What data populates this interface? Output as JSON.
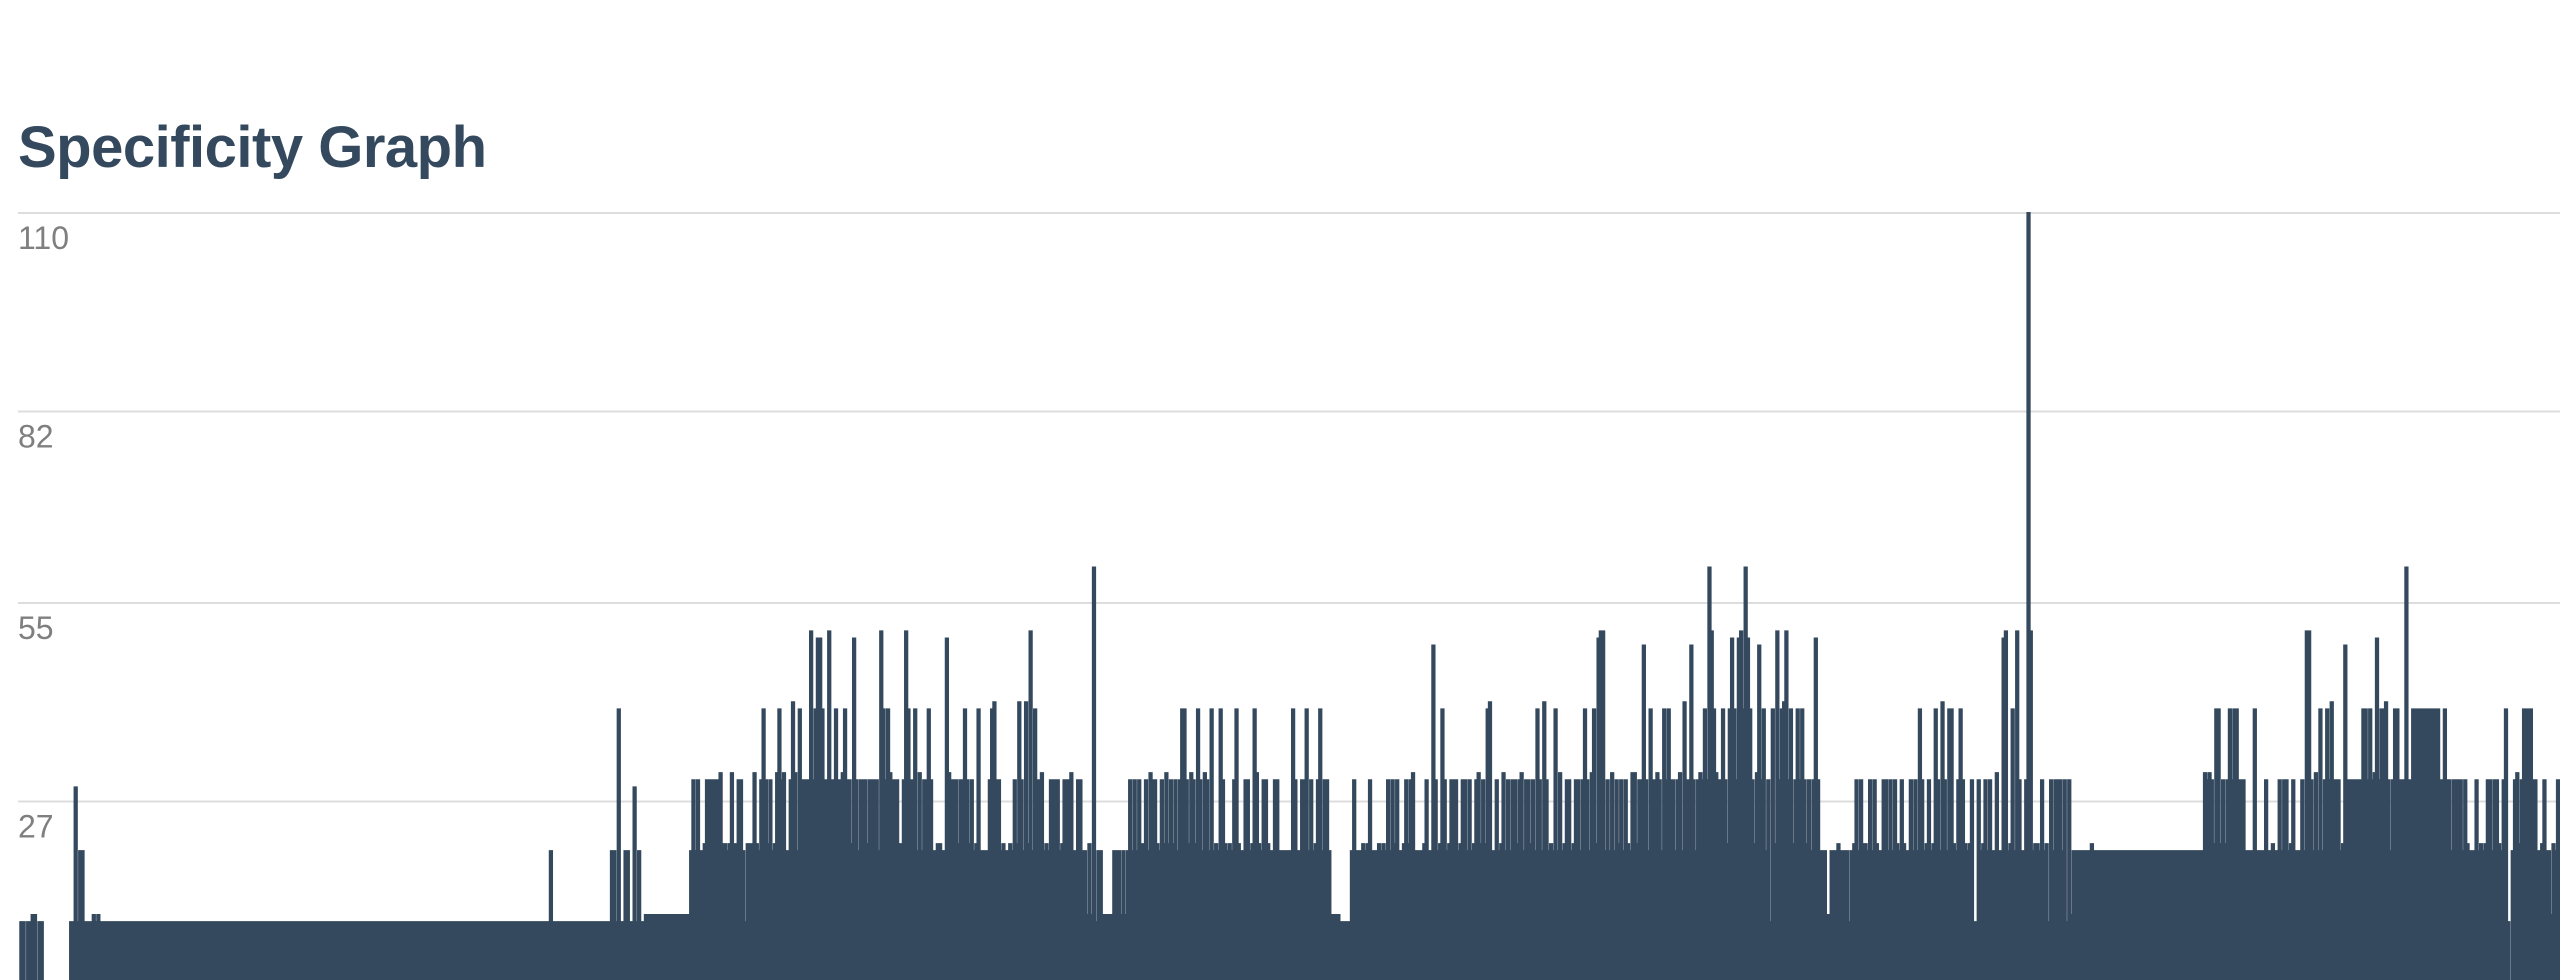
{
  "page_title": "Specificity Graph",
  "colors": {
    "series": "#34495e",
    "grid": "#dddddd",
    "tick": "#7f7f7f",
    "title": "#34495e"
  },
  "chart_data": {
    "type": "area",
    "title": "Specificity Graph",
    "xlabel": "",
    "ylabel": "",
    "ylim": [
      0,
      110
    ],
    "yticks": [
      110,
      82,
      55,
      27
    ],
    "grid": true,
    "legend": "none",
    "x": "selector index 0..n-1 (no x-axis labels shown)",
    "series": [
      {
        "values": [
          0,
          10,
          10,
          0,
          10,
          10,
          11,
          11,
          0,
          10,
          10,
          0,
          0,
          0,
          0,
          0,
          0,
          0,
          0,
          0,
          0,
          0,
          0,
          10,
          10,
          29,
          10,
          20,
          20,
          10,
          10,
          10,
          10,
          11,
          10,
          11,
          10,
          10,
          10,
          10,
          10,
          10,
          10,
          10,
          10,
          10,
          10,
          10,
          10,
          10,
          10,
          10,
          10,
          10,
          10,
          10,
          10,
          10,
          10,
          10,
          10,
          10,
          10,
          10,
          10,
          10,
          10,
          10,
          10,
          10,
          10,
          10,
          10,
          10,
          10,
          10,
          10,
          10,
          10,
          10,
          10,
          10,
          10,
          10,
          10,
          10,
          10,
          10,
          10,
          10,
          10,
          10,
          10,
          10,
          10,
          10,
          10,
          10,
          10,
          10,
          10,
          10,
          10,
          10,
          10,
          10,
          10,
          10,
          10,
          10,
          10,
          10,
          10,
          10,
          10,
          10,
          10,
          10,
          10,
          10,
          10,
          10,
          10,
          10,
          10,
          10,
          10,
          10,
          10,
          10,
          10,
          10,
          10,
          10,
          10,
          10,
          10,
          10,
          10,
          10,
          10,
          10,
          10,
          10,
          10,
          10,
          10,
          10,
          10,
          10,
          10,
          10,
          10,
          10,
          10,
          10,
          10,
          10,
          10,
          10,
          10,
          10,
          10,
          10,
          10,
          10,
          10,
          10,
          10,
          10,
          10,
          10,
          10,
          10,
          10,
          10,
          10,
          10,
          10,
          10,
          10,
          10,
          10,
          10,
          10,
          10,
          10,
          10,
          10,
          10,
          10,
          10,
          10,
          10,
          10,
          10,
          10,
          10,
          10,
          10,
          10,
          10,
          10,
          10,
          10,
          10,
          10,
          10,
          10,
          10,
          10,
          10,
          10,
          10,
          10,
          10,
          10,
          10,
          10,
          10,
          10,
          10,
          10,
          10,
          10,
          10,
          10,
          10,
          10,
          10,
          10,
          10,
          10,
          10,
          10,
          20,
          10,
          10,
          10,
          10,
          10,
          10,
          10,
          10,
          10,
          10,
          10,
          10,
          10,
          10,
          10,
          10,
          10,
          10,
          10,
          10,
          10,
          10,
          10,
          10,
          10,
          10,
          20,
          20,
          10,
          40,
          10,
          10,
          20,
          20,
          10,
          10,
          29,
          10,
          20,
          10,
          10,
          11,
          11,
          11,
          11,
          11,
          11,
          11,
          11,
          11,
          11,
          11,
          11,
          11,
          11,
          11,
          11,
          11,
          11,
          11,
          11,
          20,
          30,
          20,
          30,
          20,
          20,
          21,
          30,
          30,
          30,
          30,
          30,
          30,
          31,
          21,
          21,
          20,
          21,
          31,
          21,
          21,
          30,
          30,
          20,
          10,
          21,
          21,
          21,
          31,
          21,
          20,
          30,
          40,
          30,
          21,
          30,
          20,
          21,
          31,
          40,
          30,
          31,
          20,
          20,
          30,
          41,
          31,
          20,
          40,
          30,
          30,
          30,
          30,
          51,
          30,
          40,
          50,
          50,
          40,
          30,
          30,
          51,
          30,
          30,
          40,
          30,
          30,
          31,
          40,
          30,
          30,
          21,
          50,
          30,
          20,
          30,
          30,
          30,
          21,
          30,
          30,
          30,
          30,
          20,
          51,
          40,
          30,
          40,
          31,
          30,
          30,
          30,
          21,
          21,
          30,
          51,
          40,
          30,
          30,
          40,
          20,
          31,
          20,
          30,
          30,
          40,
          30,
          20,
          20,
          21,
          21,
          20,
          20,
          50,
          31,
          30,
          30,
          30,
          21,
          30,
          30,
          40,
          30,
          21,
          30,
          20,
          21,
          40,
          20,
          20,
          20,
          20,
          30,
          40,
          41,
          30,
          30,
          20,
          21,
          20,
          20,
          21,
          20,
          30,
          21,
          41,
          30,
          20,
          41,
          21,
          51,
          20,
          40,
          30,
          30,
          31,
          20,
          21,
          20,
          30,
          30,
          30,
          30,
          20,
          21,
          30,
          30,
          30,
          31,
          20,
          20,
          30,
          30,
          20,
          20,
          11,
          21,
          11,
          60,
          10,
          20,
          20,
          11,
          11,
          11,
          11,
          11,
          20,
          20,
          20,
          11,
          20,
          11,
          20,
          30,
          20,
          30,
          20,
          30,
          21,
          21,
          30,
          20,
          31,
          30,
          30,
          21,
          20,
          30,
          21,
          31,
          21,
          30,
          21,
          30,
          20,
          30,
          40,
          40,
          30,
          21,
          31,
          30,
          21,
          40,
          30,
          20,
          31,
          30,
          20,
          40,
          20,
          21,
          20,
          40,
          30,
          21,
          20,
          21,
          20,
          30,
          40,
          21,
          20,
          20,
          30,
          30,
          20,
          21,
          40,
          31,
          21,
          20,
          30,
          30,
          21,
          20,
          20,
          30,
          30,
          20,
          20,
          20,
          20,
          20,
          20,
          40,
          30,
          20,
          20,
          30,
          30,
          40,
          20,
          30,
          20,
          21,
          30,
          40,
          20,
          30,
          30,
          20,
          11,
          11,
          11,
          11,
          10,
          10,
          10,
          10,
          10,
          20,
          30,
          20,
          20,
          20,
          21,
          20,
          21,
          30,
          20,
          20,
          20,
          21,
          20,
          21,
          20,
          30,
          20,
          30,
          21,
          30,
          20,
          20,
          21,
          30,
          21,
          30,
          31,
          20,
          20,
          20,
          20,
          21,
          30,
          20,
          20,
          49,
          30,
          20,
          21,
          40,
          30,
          20,
          21,
          30,
          30,
          30,
          20,
          21,
          30,
          30,
          20,
          30,
          20,
          21,
          30,
          31,
          21,
          30,
          21,
          40,
          41,
          20,
          20,
          30,
          20,
          21,
          31,
          20,
          30,
          20,
          30,
          30,
          21,
          30,
          31,
          20,
          30,
          30,
          21,
          30,
          20,
          40,
          30,
          20,
          41,
          30,
          20,
          21,
          20,
          40,
          20,
          31,
          20,
          21,
          30,
          30,
          20,
          21,
          30,
          30,
          20,
          30,
          40,
          30,
          20,
          31,
          40,
          21,
          50,
          51,
          51,
          20,
          30,
          20,
          31,
          20,
          30,
          21,
          30,
          20,
          30,
          21,
          20,
          31,
          31,
          21,
          30,
          30,
          49,
          30,
          20,
          40,
          30,
          30,
          31,
          30,
          20,
          40,
          30,
          40,
          30,
          30,
          20,
          30,
          31,
          20,
          41,
          30,
          30,
          49,
          30,
          20,
          30,
          31,
          30,
          40,
          30,
          60,
          51,
          40,
          31,
          30,
          30,
          40,
          30,
          21,
          40,
          50,
          40,
          30,
          50,
          51,
          40,
          60,
          50,
          40,
          30,
          21,
          31,
          49,
          30,
          40,
          20,
          30,
          10,
          40,
          21,
          51,
          30,
          40,
          41,
          51,
          30,
          40,
          21,
          30,
          40,
          30,
          40,
          30,
          21,
          30,
          20,
          30,
          50,
          30,
          20,
          20,
          20,
          11,
          11,
          20,
          20,
          20,
          21,
          20,
          20,
          20,
          20,
          10,
          20,
          21,
          30,
          20,
          30,
          21,
          21,
          20,
          30,
          20,
          30,
          21,
          20,
          20,
          30,
          30,
          20,
          30,
          20,
          30,
          21,
          20,
          30,
          21,
          20,
          20,
          30,
          20,
          30,
          20,
          40,
          30,
          20,
          21,
          30,
          20,
          21,
          40,
          30,
          20,
          41,
          30,
          20,
          40,
          40,
          21,
          20,
          30,
          40,
          30,
          21,
          20,
          21,
          30,
          10,
          10,
          30,
          20,
          21,
          30,
          20,
          30,
          20,
          20,
          31,
          20,
          20,
          50,
          51,
          20,
          21,
          40,
          20,
          51,
          30,
          20,
          20,
          30,
          110,
          51,
          20,
          21,
          21,
          20,
          30,
          20,
          21,
          10,
          30,
          20,
          30,
          30,
          30,
          20,
          30,
          10,
          30,
          11,
          20,
          20,
          20,
          20,
          20,
          20,
          20,
          20,
          21,
          20,
          20,
          20,
          20,
          20,
          20,
          20,
          20,
          20,
          20,
          20,
          20,
          20,
          20,
          20,
          20,
          20,
          20,
          20,
          20,
          20,
          20,
          20,
          20,
          20,
          20,
          20,
          20,
          20,
          20,
          20,
          20,
          20,
          20,
          20,
          20,
          20,
          20,
          20,
          20,
          20,
          20,
          20,
          20,
          20,
          20,
          20,
          20,
          20,
          31,
          30,
          31,
          30,
          21,
          40,
          40,
          21,
          30,
          21,
          30,
          40,
          30,
          40,
          40,
          30,
          30,
          30,
          20,
          20,
          20,
          20,
          40,
          20,
          20,
          20,
          20,
          30,
          20,
          20,
          21,
          20,
          20,
          30,
          20,
          30,
          30,
          20,
          21,
          30,
          20,
          20,
          20,
          30,
          20,
          51,
          51,
          30,
          20,
          31,
          20,
          40,
          20,
          30,
          40,
          30,
          41,
          30,
          30,
          30,
          20,
          21,
          49,
          30,
          30,
          30,
          30,
          30,
          30,
          30,
          40,
          40,
          30,
          40,
          30,
          31,
          50,
          30,
          40,
          40,
          41,
          30,
          20,
          30,
          40,
          40,
          30,
          30,
          30,
          60,
          30,
          30,
          40,
          40,
          40,
          40,
          40,
          40,
          40,
          40,
          40,
          40,
          40,
          40,
          30,
          30,
          40,
          30,
          30,
          20,
          30,
          30,
          30,
          30,
          20,
          30,
          21,
          20,
          20,
          20,
          30,
          20,
          21,
          20,
          21,
          30,
          30,
          20,
          30,
          30,
          21,
          20,
          30,
          40,
          10,
          0,
          20,
          30,
          31,
          21,
          30,
          40,
          40,
          40,
          40,
          30,
          30,
          20,
          20,
          21,
          30,
          20,
          20,
          11,
          21,
          20,
          30,
          20,
          20,
          21,
          21,
          20,
          20,
          20
        ]
      }
    ]
  }
}
